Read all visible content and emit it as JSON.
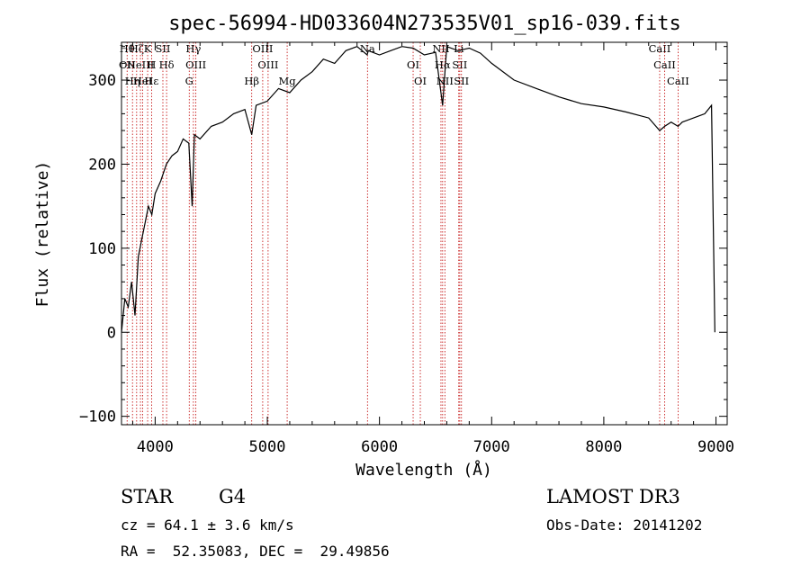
{
  "chart_data": {
    "type": "line",
    "title": "spec-56994-HD033604N273535V01_sp16-039.fits",
    "xlabel": "Wavelength (Å)",
    "ylabel": "Flux (relative)",
    "xlim": [
      3700,
      9100
    ],
    "ylim": [
      -110,
      345
    ],
    "xticks": [
      4000,
      5000,
      6000,
      7000,
      8000,
      9000
    ],
    "xtick_labels": [
      "4000",
      "5000",
      "6000",
      "7000",
      "8000",
      "9000"
    ],
    "yticks": [
      -100,
      0,
      100,
      200,
      300
    ],
    "ytick_labels": [
      "−100",
      "0",
      "100",
      "200",
      "300"
    ],
    "series": [
      {
        "name": "spectrum",
        "x": [
          3700,
          3730,
          3760,
          3790,
          3820,
          3850,
          3880,
          3910,
          3940,
          3970,
          4000,
          4050,
          4100,
          4150,
          4200,
          4250,
          4300,
          4330,
          4350,
          4400,
          4500,
          4600,
          4700,
          4800,
          4861,
          4900,
          5000,
          5100,
          5200,
          5300,
          5400,
          5500,
          5600,
          5700,
          5800,
          5890,
          5900,
          6000,
          6100,
          6200,
          6300,
          6400,
          6500,
          6563,
          6600,
          6700,
          6800,
          6900,
          7000,
          7200,
          7400,
          7600,
          7800,
          8000,
          8200,
          8400,
          8498,
          8542,
          8600,
          8662,
          8700,
          8800,
          8900,
          8960,
          8990
        ],
        "values": [
          0,
          40,
          30,
          60,
          20,
          90,
          110,
          130,
          150,
          140,
          165,
          180,
          200,
          210,
          215,
          230,
          225,
          150,
          235,
          230,
          245,
          250,
          260,
          265,
          235,
          270,
          275,
          290,
          285,
          300,
          310,
          325,
          320,
          335,
          340,
          330,
          335,
          330,
          335,
          340,
          338,
          330,
          333,
          270,
          340,
          335,
          338,
          332,
          320,
          300,
          290,
          280,
          272,
          268,
          262,
          255,
          240,
          245,
          250,
          245,
          250,
          255,
          260,
          270,
          0
        ]
      }
    ],
    "line_markers": [
      {
        "wl": 3750,
        "labels": [
          "Hθ",
          "OII"
        ]
      },
      {
        "wl": 3798,
        "labels": [
          "Hη"
        ]
      },
      {
        "wl": 3835,
        "labels": [
          "Hζ"
        ]
      },
      {
        "wl": 3869,
        "labels": [
          "NeIII"
        ]
      },
      {
        "wl": 3889,
        "labels": [
          "HeI"
        ]
      },
      {
        "wl": 3933,
        "labels": [
          "K"
        ]
      },
      {
        "wl": 3968,
        "labels": [
          "H",
          "Hε"
        ]
      },
      {
        "wl": 4069,
        "labels": [
          "SII"
        ]
      },
      {
        "wl": 4102,
        "labels": [
          "Hδ"
        ]
      },
      {
        "wl": 4304,
        "labels": [
          "G"
        ]
      },
      {
        "wl": 4341,
        "labels": [
          "Hγ"
        ]
      },
      {
        "wl": 4363,
        "labels": [
          "OIII"
        ]
      },
      {
        "wl": 4861,
        "labels": [
          "Hβ"
        ]
      },
      {
        "wl": 4959,
        "labels": [
          "OIII"
        ]
      },
      {
        "wl": 5007,
        "labels": [
          "OIII"
        ]
      },
      {
        "wl": 5177,
        "labels": [
          "Mg"
        ]
      },
      {
        "wl": 5893,
        "labels": [
          "Na"
        ]
      },
      {
        "wl": 6300,
        "labels": [
          "OI"
        ]
      },
      {
        "wl": 6364,
        "labels": [
          "OI"
        ]
      },
      {
        "wl": 6548,
        "labels": [
          "NII"
        ]
      },
      {
        "wl": 6563,
        "labels": [
          "Hα"
        ]
      },
      {
        "wl": 6583,
        "labels": [
          "NII"
        ]
      },
      {
        "wl": 6707,
        "labels": [
          "Li"
        ]
      },
      {
        "wl": 6716,
        "labels": [
          "SII"
        ]
      },
      {
        "wl": 6731,
        "labels": [
          "SII"
        ]
      },
      {
        "wl": 8498,
        "labels": [
          "CaII"
        ]
      },
      {
        "wl": 8542,
        "labels": [
          "CaII"
        ]
      },
      {
        "wl": 8662,
        "labels": [
          "CaII"
        ]
      }
    ]
  },
  "info": {
    "class": "STAR",
    "subclass": "G4",
    "cz": "cz = 64.1 ± 3.6 km/s",
    "radec": "RA =  52.35083, DEC =  29.49856",
    "survey": "LAMOST DR3",
    "obsdate": "Obs-Date: 20141202"
  }
}
